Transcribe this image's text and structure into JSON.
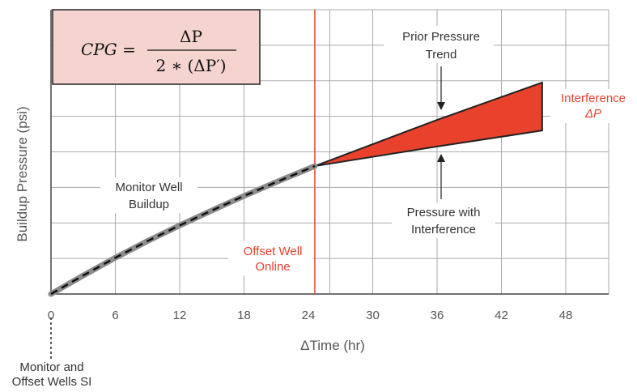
{
  "chart_data": {
    "type": "line",
    "xlabel": "ΔTime (hr)",
    "ylabel": "Buildup Pressure (psi)",
    "xlim": [
      0,
      52
    ],
    "ylim": [
      0,
      8
    ],
    "xticks": [
      "0",
      "6",
      "12",
      "18",
      "24",
      "30",
      "36",
      "42",
      "48"
    ],
    "xtick_values": [
      0,
      6,
      12,
      18,
      24,
      30,
      36,
      42,
      48
    ],
    "grid": true,
    "series": [
      {
        "name": "Monitor Well Buildup",
        "x": [
          0,
          3,
          6,
          9,
          12,
          15,
          18,
          21,
          24.6
        ],
        "y": [
          0,
          0.52,
          1.02,
          1.49,
          1.93,
          2.35,
          2.76,
          3.15,
          3.6
        ]
      },
      {
        "name": "Prior Pressure Trend",
        "x": [
          24.6,
          36,
          45.8
        ],
        "y": [
          3.6,
          4.9,
          5.95
        ]
      },
      {
        "name": "Pressure with Interference",
        "x": [
          24.6,
          36,
          45.8
        ],
        "y": [
          3.6,
          4.15,
          4.6
        ]
      }
    ],
    "vertical_lines": [
      {
        "name": "Offset Well Online",
        "x": 24.6,
        "color": "#e8412c"
      },
      {
        "name": "Grid",
        "x": 26,
        "color": "#aaaaaa"
      }
    ],
    "annotations": {
      "monitor_well": [
        "Monitor Well",
        "Buildup"
      ],
      "offset_online": [
        "Offset Well",
        "Online"
      ],
      "prior_trend": [
        "Prior Pressure",
        "Trend"
      ],
      "with_interference": [
        "Pressure with",
        "Interference"
      ],
      "interference": [
        "Interference",
        "ΔP"
      ],
      "shut_in": [
        "Monitor and",
        "Offset Wells SI"
      ]
    },
    "formula": {
      "lhs": "CPG =",
      "numerator": "ΔP",
      "denominator": "2 ∗ (ΔP′)"
    },
    "colors": {
      "interference_fill": "#e8412c",
      "buildup_line": "#8c8c8c",
      "formula_box": "#f5d3cf",
      "grid": "#aaaaaa"
    }
  }
}
